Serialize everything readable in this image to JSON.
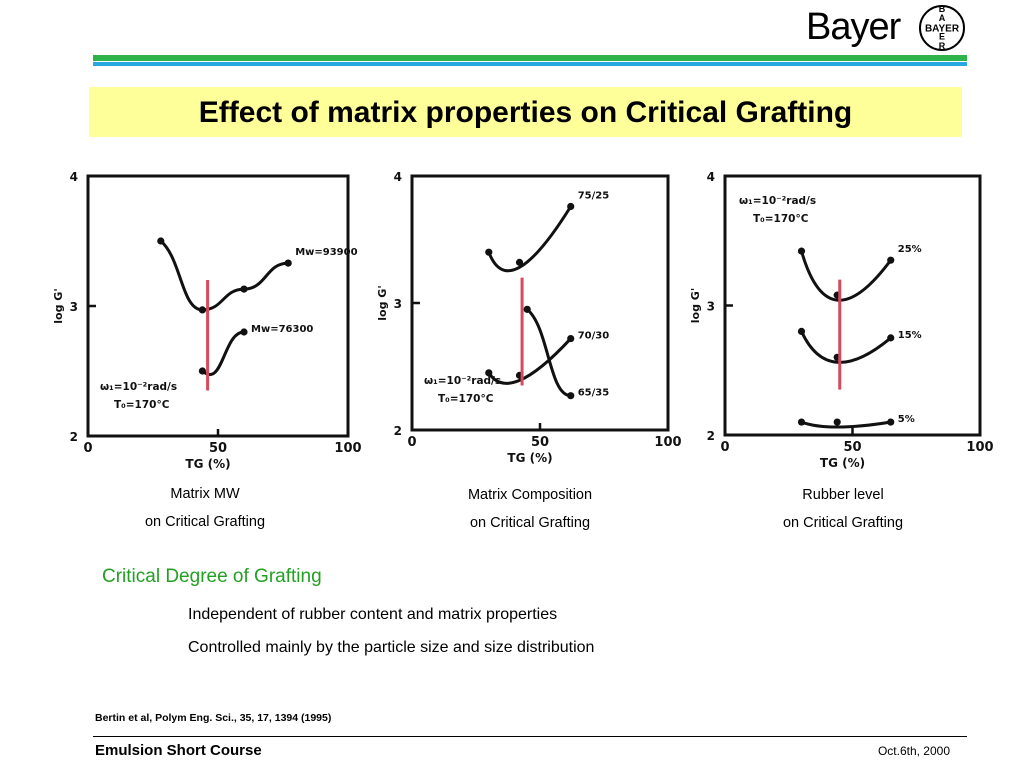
{
  "logo": {
    "wordmark": "Bayer",
    "cross_text": "BAYER",
    "cross_letters": [
      "B",
      "A",
      "Y",
      "E",
      "R"
    ]
  },
  "colors": {
    "rule_green": "#2db34a",
    "rule_blue": "#29a8e0",
    "title_bg": "#ffff99",
    "heading_green": "#23a023",
    "marker_red": "#d64a5e"
  },
  "title": "Effect of matrix properties on Critical Grafting",
  "chart_data": [
    {
      "type": "line",
      "caption": [
        "Matrix MW",
        "on Critical Grafting"
      ],
      "xlabel": "TG (%)",
      "ylabel": "log G'",
      "xlim": [
        0,
        100
      ],
      "ylim": [
        2,
        4
      ],
      "xticks": [
        "0",
        "50",
        "100"
      ],
      "yticks": [
        "2",
        "3",
        "4"
      ],
      "annotation": [
        "ω₁=10⁻²rad/s",
        "T₀=170°C"
      ],
      "critical_tg": 46,
      "series": [
        {
          "name": "Mw=93900",
          "x": [
            28,
            44,
            60,
            77
          ],
          "y": [
            3.5,
            2.97,
            3.13,
            3.33
          ]
        },
        {
          "name": "Mw=76300",
          "x": [
            44,
            60
          ],
          "y": [
            2.5,
            2.8
          ]
        }
      ]
    },
    {
      "type": "line",
      "caption": [
        "Matrix Composition",
        "on Critical Grafting"
      ],
      "xlabel": "TG (%)",
      "ylabel": "log G'",
      "xlim": [
        0,
        100
      ],
      "ylim": [
        2,
        4
      ],
      "xticks": [
        "0",
        "50",
        "100"
      ],
      "yticks": [
        "2",
        "3",
        "4"
      ],
      "annotation": [
        "ω₁=10⁻²rad/s",
        "T₀=170°C"
      ],
      "critical_tg": 43,
      "series": [
        {
          "name": "75/25",
          "x": [
            30,
            42,
            62
          ],
          "y": [
            3.4,
            3.32,
            3.76
          ]
        },
        {
          "name": "70/30",
          "x": [
            30,
            42,
            62
          ],
          "y": [
            2.45,
            2.43,
            2.72
          ]
        },
        {
          "name": "65/35",
          "x": [
            45,
            62
          ],
          "y": [
            2.95,
            2.27
          ]
        }
      ]
    },
    {
      "type": "line",
      "caption": [
        "Rubber level",
        "on Critical Grafting"
      ],
      "xlabel": "TG (%)",
      "ylabel": "log G'",
      "xlim": [
        0,
        100
      ],
      "ylim": [
        2,
        4
      ],
      "xticks": [
        "0",
        "50",
        "100"
      ],
      "yticks": [
        "2",
        "3",
        "4"
      ],
      "annotation": [
        "ω₁=10⁻²rad/s",
        "T₀=170°C"
      ],
      "critical_tg": 45,
      "series": [
        {
          "name": "25%",
          "x": [
            30,
            44,
            65
          ],
          "y": [
            3.42,
            3.08,
            3.35
          ]
        },
        {
          "name": "15%",
          "x": [
            30,
            44,
            65
          ],
          "y": [
            2.8,
            2.6,
            2.75
          ]
        },
        {
          "name": "5%",
          "x": [
            30,
            44,
            65
          ],
          "y": [
            2.1,
            2.1,
            2.1
          ]
        }
      ]
    }
  ],
  "heading": "Critical Degree of Grafting",
  "bullets": [
    "Independent of rubber content and matrix properties",
    "Controlled mainly by the particle size and size distribution"
  ],
  "citation": "Bertin et al, Polym Eng. Sci., 35, 17, 1394 (1995)",
  "footer": {
    "left": "Emulsion Short Course",
    "right": "Oct.6th, 2000"
  }
}
